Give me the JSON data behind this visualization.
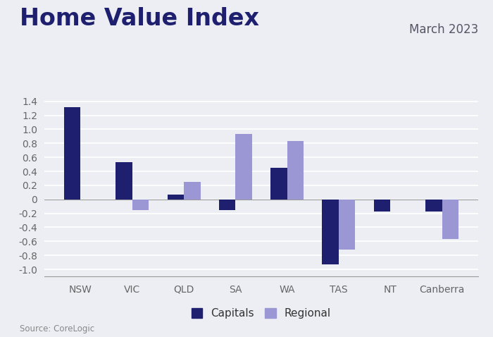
{
  "title": "Home Value Index",
  "subtitle": "March 2023",
  "source": "Source: CoreLogic",
  "categories": [
    "NSW",
    "VIC",
    "QLD",
    "SA",
    "WA",
    "TAS",
    "NT",
    "Canberra"
  ],
  "capitals": [
    1.32,
    0.53,
    0.07,
    -0.15,
    0.45,
    -0.93,
    -0.17,
    -0.17
  ],
  "regional": [
    null,
    -0.15,
    0.25,
    0.93,
    0.83,
    -0.72,
    null,
    -0.57
  ],
  "capitals_color": "#1e1f6e",
  "regional_color": "#9b96d4",
  "background_color": "#eceef3",
  "grid_color": "#ffffff",
  "ylim": [
    -1.1,
    1.5
  ],
  "yticks": [
    -1.0,
    -0.8,
    -0.6,
    -0.4,
    -0.2,
    0.0,
    0.2,
    0.4,
    0.6,
    0.8,
    1.0,
    1.2,
    1.4
  ],
  "bar_width": 0.32,
  "title_fontsize": 24,
  "subtitle_fontsize": 12,
  "tick_fontsize": 10,
  "legend_fontsize": 11,
  "source_fontsize": 8.5
}
